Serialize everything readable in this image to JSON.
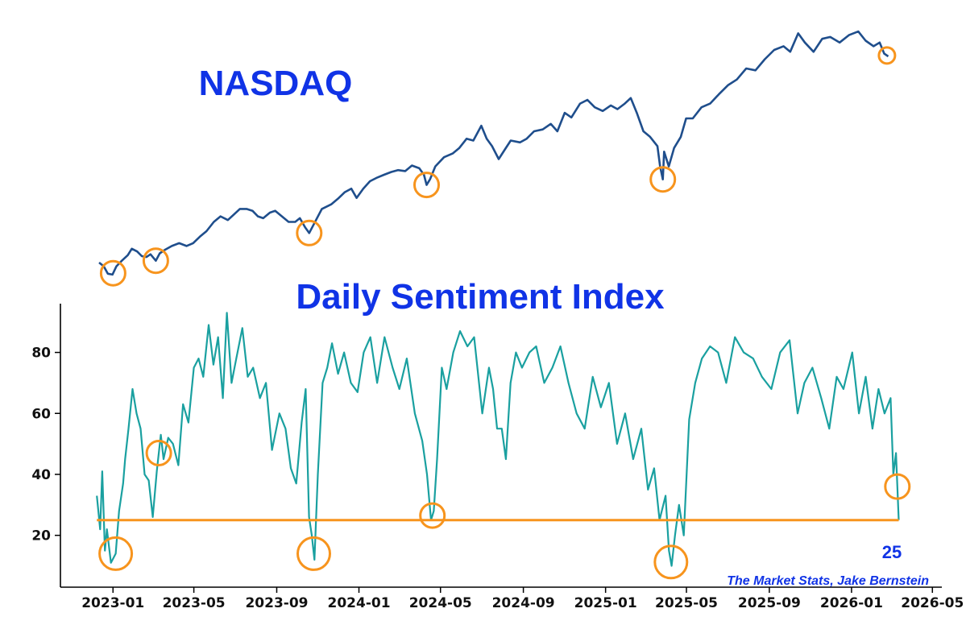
{
  "colors": {
    "nasdaq_line": "#1f4e8c",
    "sentiment_line": "#1aa0a0",
    "threshold": "#f7941d",
    "title": "#1033e6",
    "axis": "#000000"
  },
  "chart_data": [
    {
      "type": "line",
      "title": "NASDAQ",
      "y_axis_shown": false,
      "x_range": [
        "2022-12-15",
        "2026-03-15"
      ],
      "series": [
        {
          "x": [
            "2022-12-15",
            "2022-12-22",
            "2022-12-28",
            "2023-01-04",
            "2023-01-10",
            "2023-01-18",
            "2023-01-27",
            "2023-02-02",
            "2023-02-10",
            "2023-02-17",
            "2023-02-24",
            "2023-03-02",
            "2023-03-10",
            "2023-03-16",
            "2023-03-24",
            "2023-04-03",
            "2023-04-14",
            "2023-04-25",
            "2023-05-05",
            "2023-05-15",
            "2023-05-25",
            "2023-06-05",
            "2023-06-15",
            "2023-06-26",
            "2023-07-05",
            "2023-07-14",
            "2023-07-24",
            "2023-08-02",
            "2023-08-10",
            "2023-08-18",
            "2023-08-28",
            "2023-09-05",
            "2023-09-15",
            "2023-09-25",
            "2023-10-05",
            "2023-10-12",
            "2023-10-20",
            "2023-10-26",
            "2023-11-03",
            "2023-11-14",
            "2023-11-28",
            "2023-12-08",
            "2023-12-18",
            "2023-12-28",
            "2024-01-05",
            "2024-01-15",
            "2024-01-25",
            "2024-02-05",
            "2024-02-15",
            "2024-02-26",
            "2024-03-07",
            "2024-03-18",
            "2024-03-28",
            "2024-04-08",
            "2024-04-15",
            "2024-04-19",
            "2024-04-24",
            "2024-05-02",
            "2024-05-15",
            "2024-05-28",
            "2024-06-07",
            "2024-06-18",
            "2024-06-28",
            "2024-07-10",
            "2024-07-18",
            "2024-07-26",
            "2024-08-05",
            "2024-08-14",
            "2024-08-23",
            "2024-09-06",
            "2024-09-16",
            "2024-09-27",
            "2024-10-10",
            "2024-10-22",
            "2024-11-01",
            "2024-11-12",
            "2024-11-22",
            "2024-12-05",
            "2024-12-16",
            "2024-12-27",
            "2025-01-08",
            "2025-01-20",
            "2025-01-30",
            "2025-02-10",
            "2025-02-19",
            "2025-02-28",
            "2025-03-10",
            "2025-03-20",
            "2025-03-31",
            "2025-04-04",
            "2025-04-08",
            "2025-04-10",
            "2025-04-17",
            "2025-04-25",
            "2025-05-05",
            "2025-05-13",
            "2025-05-23",
            "2025-06-05",
            "2025-06-18",
            "2025-07-01",
            "2025-07-15",
            "2025-07-28",
            "2025-08-11",
            "2025-08-25",
            "2025-09-08",
            "2025-09-22",
            "2025-10-06",
            "2025-10-16",
            "2025-10-28",
            "2025-11-07",
            "2025-11-20",
            "2025-12-03",
            "2025-12-15",
            "2025-12-29",
            "2026-01-12",
            "2026-01-26",
            "2026-02-06",
            "2026-02-18",
            "2026-02-27",
            "2026-03-06",
            "2026-03-12"
          ],
          "values": [
            11100,
            10900,
            10500,
            10450,
            10900,
            11200,
            11500,
            11850,
            11700,
            11450,
            11400,
            11550,
            11200,
            11600,
            11800,
            12000,
            12150,
            12000,
            12150,
            12500,
            12800,
            13300,
            13600,
            13400,
            13700,
            14000,
            14000,
            13900,
            13600,
            13500,
            13800,
            13900,
            13600,
            13300,
            13300,
            13500,
            13000,
            12700,
            13250,
            14000,
            14250,
            14550,
            14900,
            15100,
            14600,
            15100,
            15500,
            15700,
            15850,
            16000,
            16100,
            16050,
            16350,
            16200,
            15850,
            15300,
            15600,
            16300,
            16800,
            17000,
            17300,
            17800,
            17700,
            18500,
            17800,
            17400,
            16700,
            17200,
            17700,
            17600,
            17800,
            18200,
            18300,
            18600,
            18200,
            19200,
            18950,
            19700,
            19900,
            19500,
            19300,
            19600,
            19400,
            19700,
            20000,
            19200,
            18200,
            17900,
            17400,
            16300,
            15600,
            17100,
            16300,
            17300,
            17900,
            18900,
            18900,
            19500,
            19700,
            20200,
            20700,
            21000,
            21600,
            21500,
            22100,
            22600,
            22800,
            22500,
            23500,
            23000,
            22500,
            23200,
            23300,
            23000,
            23400,
            23600,
            23100,
            22800,
            23000,
            22400,
            22250
          ]
        }
      ],
      "annotations": [
        "2023-01-05",
        "2023-03-10",
        "2023-10-26",
        "2024-04-19",
        "2025-04-08",
        "2026-03-10"
      ]
    },
    {
      "type": "line",
      "title": "Daily Sentiment Index",
      "y_ticks": [
        20,
        40,
        60,
        80
      ],
      "ylim": [
        3,
        96
      ],
      "x_range": [
        "2022-10-15",
        "2026-05-15"
      ],
      "x_ticks": [
        "2023-01",
        "2023-05",
        "2023-09",
        "2024-01",
        "2024-05",
        "2024-09",
        "2025-01",
        "2025-05",
        "2025-09",
        "2026-01",
        "2026-05"
      ],
      "threshold": 25,
      "latest_label": "25",
      "credit": "The Market Stats, Jake Bernstein",
      "series": [
        {
          "x": [
            "2022-12-08",
            "2022-12-13",
            "2022-12-16",
            "2022-12-20",
            "2022-12-23",
            "2022-12-29",
            "2023-01-05",
            "2023-01-10",
            "2023-01-16",
            "2023-01-19",
            "2023-01-24",
            "2023-01-30",
            "2023-02-05",
            "2023-02-11",
            "2023-02-17",
            "2023-02-23",
            "2023-03-01",
            "2023-03-07",
            "2023-03-13",
            "2023-03-17",
            "2023-03-24",
            "2023-03-31",
            "2023-04-08",
            "2023-04-15",
            "2023-04-23",
            "2023-05-01",
            "2023-05-08",
            "2023-05-15",
            "2023-05-23",
            "2023-05-30",
            "2023-06-06",
            "2023-06-13",
            "2023-06-19",
            "2023-06-26",
            "2023-07-03",
            "2023-07-12",
            "2023-07-20",
            "2023-07-28",
            "2023-08-07",
            "2023-08-16",
            "2023-08-25",
            "2023-09-05",
            "2023-09-14",
            "2023-09-22",
            "2023-09-30",
            "2023-10-08",
            "2023-10-14",
            "2023-10-19",
            "2023-10-23",
            "2023-10-27",
            "2023-11-01",
            "2023-11-08",
            "2023-11-15",
            "2023-11-22",
            "2023-12-01",
            "2023-12-10",
            "2023-12-20",
            "2023-12-30",
            "2024-01-08",
            "2024-01-18",
            "2024-01-28",
            "2024-02-08",
            "2024-02-20",
            "2024-03-01",
            "2024-03-12",
            "2024-03-24",
            "2024-04-04",
            "2024-04-11",
            "2024-04-17",
            "2024-04-21",
            "2024-04-26",
            "2024-05-03",
            "2024-05-10",
            "2024-05-20",
            "2024-05-30",
            "2024-06-10",
            "2024-06-20",
            "2024-07-02",
            "2024-07-12",
            "2024-07-18",
            "2024-07-24",
            "2024-07-31",
            "2024-08-06",
            "2024-08-13",
            "2024-08-21",
            "2024-08-30",
            "2024-09-10",
            "2024-09-20",
            "2024-10-02",
            "2024-10-14",
            "2024-10-26",
            "2024-11-07",
            "2024-11-19",
            "2024-12-01",
            "2024-12-13",
            "2024-12-25",
            "2025-01-06",
            "2025-01-18",
            "2025-01-30",
            "2025-02-11",
            "2025-02-23",
            "2025-03-05",
            "2025-03-14",
            "2025-03-22",
            "2025-03-31",
            "2025-04-05",
            "2025-04-09",
            "2025-04-14",
            "2025-04-20",
            "2025-04-27",
            "2025-05-05",
            "2025-05-14",
            "2025-05-24",
            "2025-06-05",
            "2025-06-17",
            "2025-06-29",
            "2025-07-12",
            "2025-07-25",
            "2025-08-08",
            "2025-08-21",
            "2025-09-04",
            "2025-09-17",
            "2025-10-01",
            "2025-10-13",
            "2025-10-23",
            "2025-11-04",
            "2025-11-17",
            "2025-11-29",
            "2025-12-10",
            "2025-12-20",
            "2026-01-02",
            "2026-01-12",
            "2026-01-22",
            "2026-02-01",
            "2026-02-10",
            "2026-02-19",
            "2026-02-28",
            "2026-03-04",
            "2026-03-08",
            "2026-03-12"
          ],
          "values": [
            33,
            22,
            41,
            15,
            22,
            11,
            14,
            28,
            37,
            45,
            55,
            68,
            60,
            55,
            40,
            38,
            26,
            41,
            53,
            45,
            52,
            50,
            43,
            63,
            57,
            75,
            78,
            72,
            89,
            76,
            85,
            65,
            93,
            70,
            78,
            88,
            72,
            75,
            65,
            70,
            48,
            60,
            55,
            42,
            37,
            57,
            68,
            26,
            20,
            12,
            40,
            70,
            75,
            83,
            73,
            80,
            70,
            67,
            80,
            85,
            70,
            85,
            75,
            68,
            78,
            60,
            51,
            40,
            25,
            28,
            45,
            75,
            68,
            80,
            87,
            82,
            85,
            60,
            75,
            68,
            55,
            55,
            45,
            70,
            80,
            75,
            80,
            82,
            70,
            75,
            82,
            70,
            60,
            55,
            72,
            62,
            70,
            50,
            60,
            45,
            55,
            35,
            42,
            25,
            33,
            15,
            10,
            20,
            30,
            20,
            58,
            70,
            78,
            82,
            80,
            70,
            85,
            80,
            78,
            72,
            68,
            80,
            84,
            60,
            70,
            75,
            65,
            55,
            72,
            68,
            80,
            60,
            72,
            55,
            68,
            60,
            65,
            40,
            47,
            25
          ]
        }
      ],
      "annotations": [
        "2023-01-05",
        "2023-03-10",
        "2023-10-26",
        "2024-04-19",
        "2025-04-08",
        "2026-03-10"
      ]
    }
  ]
}
